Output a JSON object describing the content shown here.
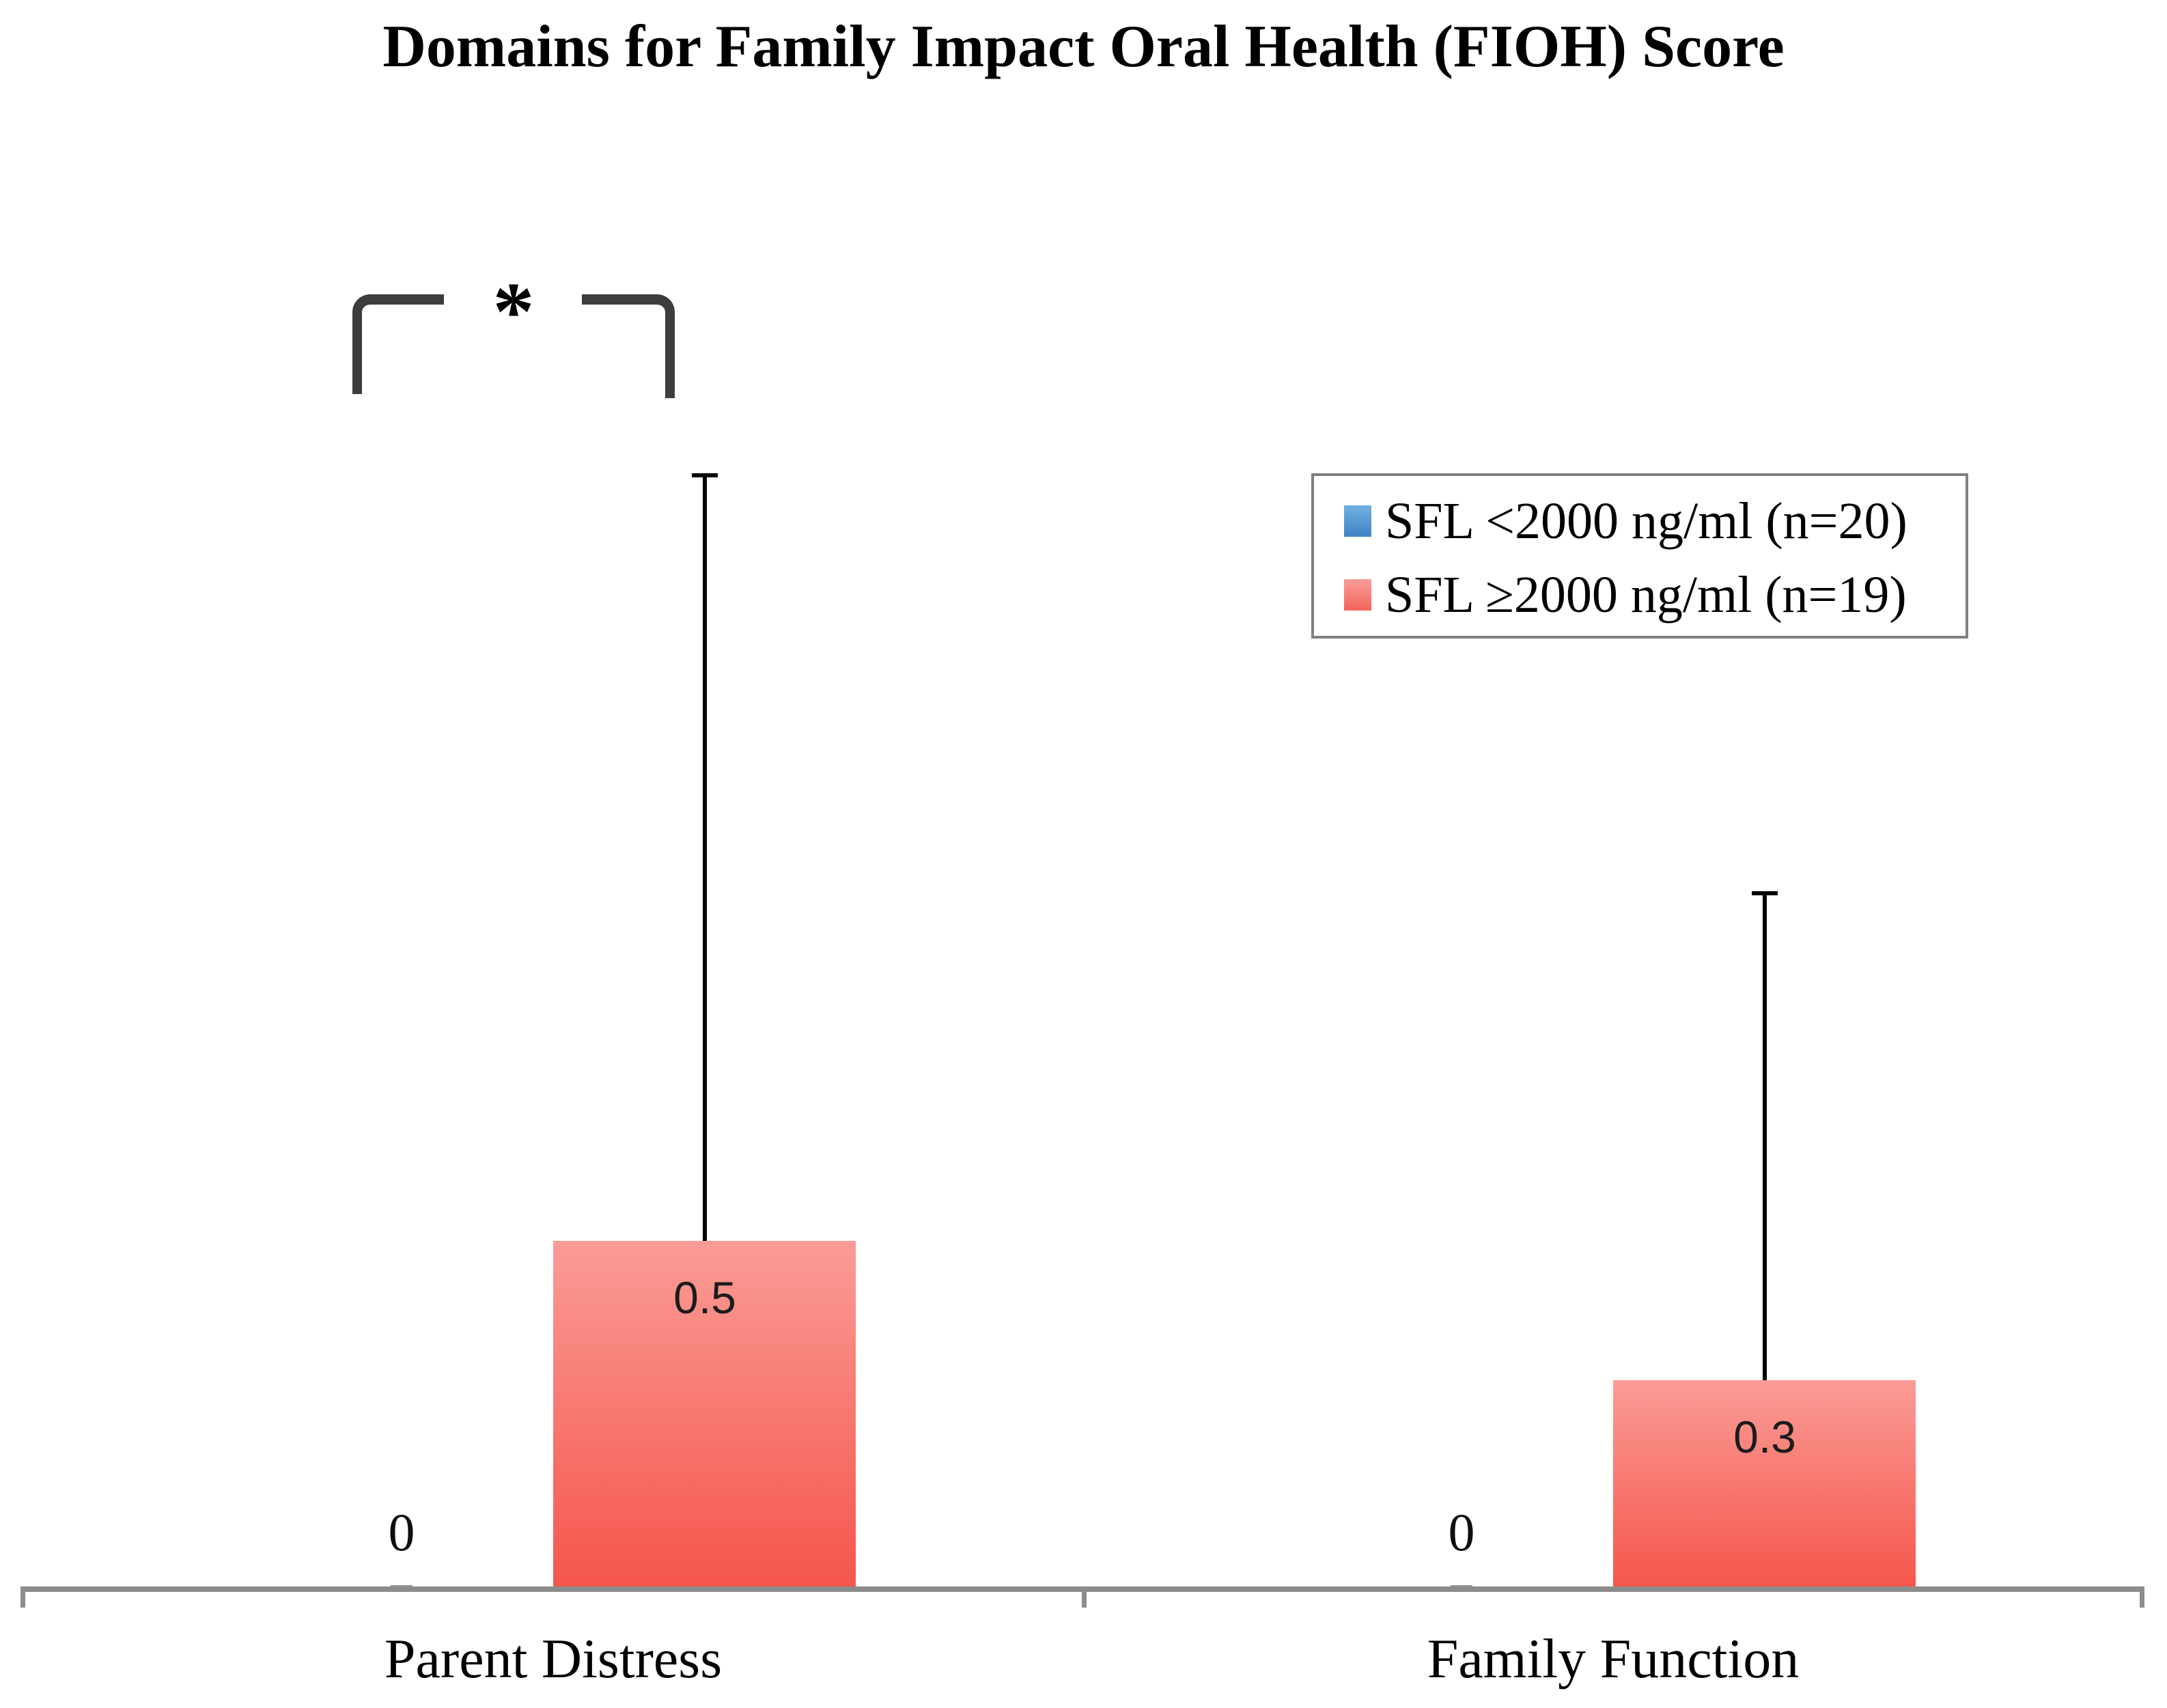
{
  "title": "Domains for Family Impact Oral Health (FIOH) Score",
  "chart_data": {
    "type": "bar",
    "title": "Domains for Family Impact Oral Health (FIOH) Score",
    "categories": [
      "Parent Distress",
      "Family Function"
    ],
    "series": [
      {
        "name": "SFL <2000 ng/ml (n=20)",
        "values": [
          0,
          0
        ],
        "value_labels": [
          "0",
          "0"
        ],
        "color_top": "#71B1E2",
        "color_bottom": "#3F83C5"
      },
      {
        "name": "SFL ≥2000 ng/ml (n=19)",
        "values": [
          0.5,
          0.3
        ],
        "value_labels": [
          "0.5",
          "0.3"
        ],
        "error_bar_tops": [
          1.6,
          1.0
        ],
        "color_top": "#FA9B96",
        "color_bottom": "#F5554B"
      }
    ],
    "annotations": [
      {
        "type": "significance-bracket",
        "label": "*",
        "category": "Parent Distress",
        "between_series": [
          "SFL <2000 ng/ml (n=20)",
          "SFL ≥2000 ng/ml (n=19)"
        ]
      }
    ],
    "legend_position": "upper-right",
    "grid": false,
    "y_axis_shown": false,
    "baseline_value": 0
  },
  "colors": {
    "axis": "#8C8C8C",
    "error_bar": "#000000",
    "bracket": "#3D3D3D",
    "text": "#000000"
  }
}
